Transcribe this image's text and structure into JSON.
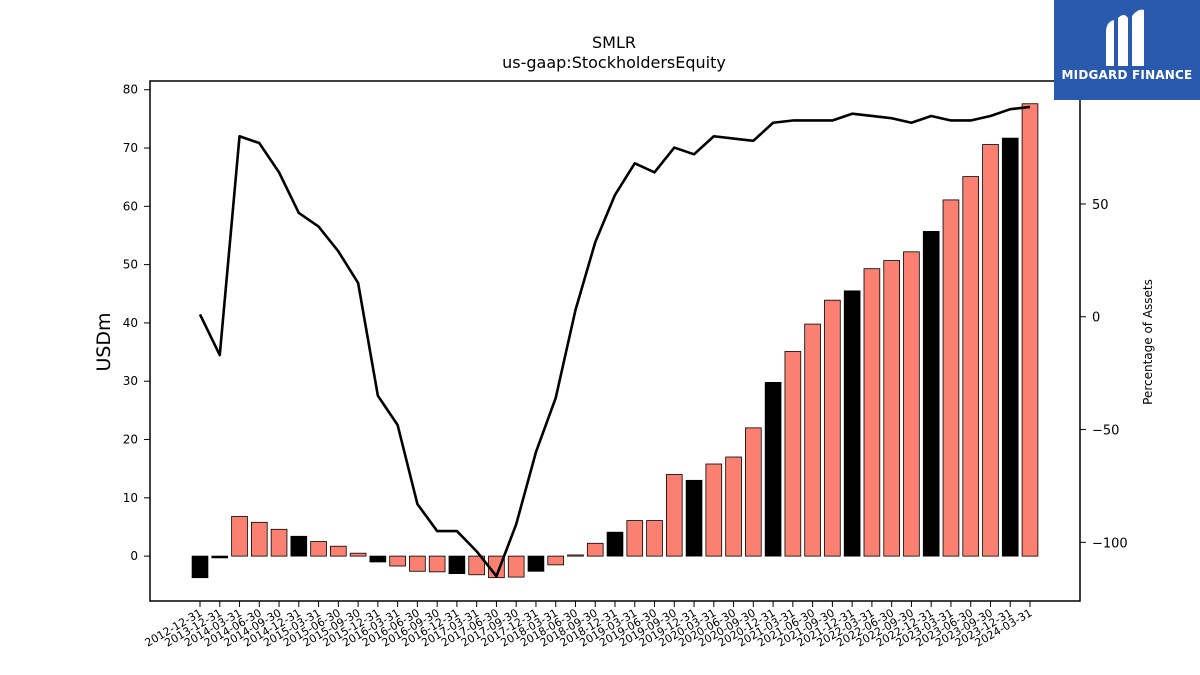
{
  "logo": {
    "text": "MIDGARD FINANCE",
    "icon": "midgard-logo-icon",
    "background": "#2a5aae"
  },
  "chart_data": {
    "type": "bar",
    "title": "SMLR",
    "subtitle": "us-gaap:StockholdersEquity",
    "ylabel": "USDm",
    "y2label": "Percentage of Assets",
    "ylim": [
      -7.7,
      81.5
    ],
    "y2lim": [
      -126,
      104.5
    ],
    "yticks": [
      0,
      10,
      20,
      30,
      40,
      50,
      60,
      70,
      80
    ],
    "y2ticks": [
      -100,
      -50,
      0,
      50
    ],
    "categories": [
      "2012-12-31",
      "2013-12-31",
      "2014-03-31",
      "2014-06-30",
      "2014-09-30",
      "2014-12-31",
      "2015-03-31",
      "2015-06-30",
      "2015-09-30",
      "2015-12-31",
      "2016-03-31",
      "2016-06-30",
      "2016-09-30",
      "2016-12-31",
      "2017-03-31",
      "2017-06-30",
      "2017-09-30",
      "2017-12-31",
      "2018-03-31",
      "2018-06-30",
      "2018-09-30",
      "2018-12-31",
      "2019-03-31",
      "2019-06-30",
      "2019-09-30",
      "2019-12-31",
      "2020-03-31",
      "2020-06-30",
      "2020-09-30",
      "2020-12-31",
      "2021-03-31",
      "2021-06-30",
      "2021-09-30",
      "2021-12-31",
      "2022-03-31",
      "2022-06-30",
      "2022-09-30",
      "2022-12-31",
      "2023-03-31",
      "2023-06-30",
      "2023-09-30",
      "2023-12-31",
      "2024-03-31"
    ],
    "series": [
      {
        "type": "bar",
        "values": [
          -3.7,
          -0.3,
          6.8,
          5.8,
          4.6,
          3.4,
          2.5,
          1.7,
          0.5,
          -1.0,
          -1.7,
          -2.6,
          -2.7,
          -3.0,
          -3.2,
          -3.7,
          -3.6,
          -2.6,
          -1.5,
          0.2,
          2.2,
          4.1,
          6.1,
          6.1,
          14.0,
          13.0,
          15.8,
          17.0,
          22.0,
          29.8,
          35.1,
          39.8,
          43.9,
          45.5,
          49.3,
          50.7,
          52.2,
          55.7,
          61.1,
          65.1,
          70.6,
          71.7,
          77.6
        ],
        "colors": [
          "#000000",
          "#000000",
          "#fa8072",
          "#fa8072",
          "#fa8072",
          "#000000",
          "#fa8072",
          "#fa8072",
          "#fa8072",
          "#000000",
          "#fa8072",
          "#fa8072",
          "#fa8072",
          "#000000",
          "#fa8072",
          "#fa8072",
          "#fa8072",
          "#000000",
          "#fa8072",
          "#fa8072",
          "#fa8072",
          "#000000",
          "#fa8072",
          "#fa8072",
          "#fa8072",
          "#000000",
          "#fa8072",
          "#fa8072",
          "#fa8072",
          "#000000",
          "#fa8072",
          "#fa8072",
          "#fa8072",
          "#000000",
          "#fa8072",
          "#fa8072",
          "#fa8072",
          "#000000",
          "#fa8072",
          "#fa8072",
          "#fa8072",
          "#000000",
          "#fa8072"
        ]
      },
      {
        "type": "line",
        "axis": "right",
        "color": "#000000",
        "values": [
          1,
          -17,
          80,
          77,
          64,
          46,
          40,
          29,
          15,
          -35,
          -48,
          -83,
          -95,
          -95,
          -104,
          -115,
          -92,
          -60,
          -36,
          3,
          33,
          54,
          68,
          64,
          75,
          72,
          80,
          79,
          78,
          86,
          87,
          87,
          87,
          90,
          89,
          88,
          86,
          89,
          87,
          87,
          89,
          92,
          93
        ]
      }
    ],
    "grid": false,
    "legend": "none"
  }
}
